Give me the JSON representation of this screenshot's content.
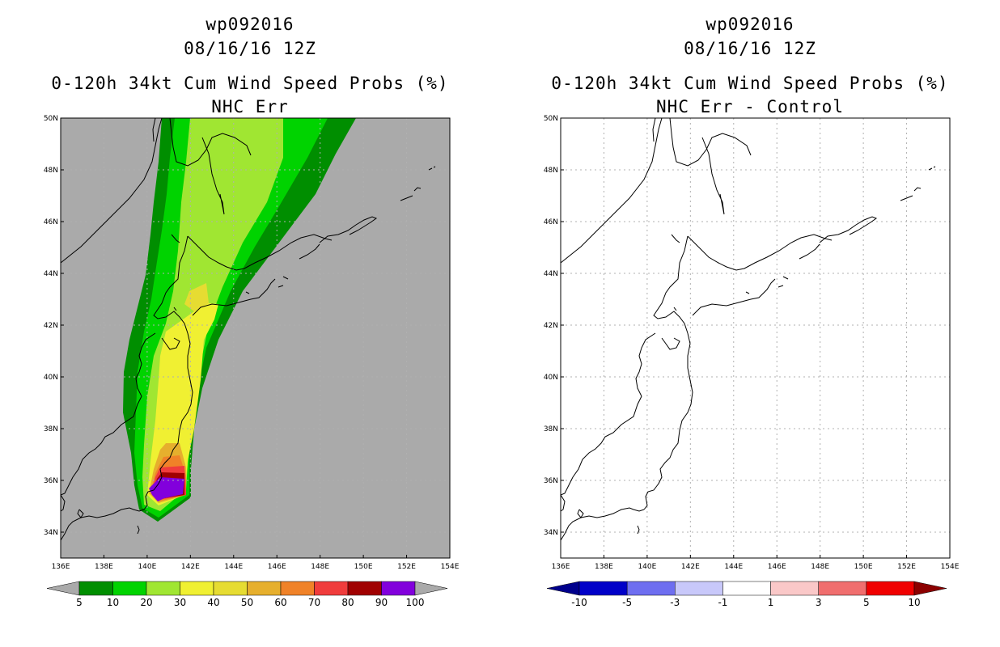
{
  "colors": {
    "land_gray": "#aaaaaa",
    "coast": "#000000",
    "grid": "#b0b0b0"
  },
  "left_panel": {
    "title_line1": "wp092016",
    "title_line2": "08/16/16 12Z",
    "title_line3": "0-120h 34kt Cum Wind Speed Probs (%)",
    "title_line4": "NHC Err",
    "colorbar": {
      "colors": [
        "#008e00",
        "#00d300",
        "#a0e632",
        "#f0f032",
        "#e6dc32",
        "#e6af2d",
        "#f08228",
        "#f03c3c",
        "#a00000",
        "#8200dc"
      ],
      "under_color": "#aaaaaa",
      "over_color": "#aaaaaa",
      "labels": [
        "5",
        "10",
        "20",
        "30",
        "40",
        "50",
        "60",
        "70",
        "80",
        "90",
        "100"
      ]
    }
  },
  "right_panel": {
    "title_line1": "wp092016",
    "title_line2": "08/16/16 12Z",
    "title_line3": "0-120h 34kt Cum Wind Speed Probs (%)",
    "title_line4": "NHC Err - Control",
    "colorbar": {
      "colors": [
        "#0000c8",
        "#6e6ef0",
        "#c8c8fa",
        "#ffffff",
        "#fac8c8",
        "#f06e6e",
        "#f00000"
      ],
      "under_color": "#00008c",
      "over_color": "#8c0000",
      "labels": [
        "-10",
        "-5",
        "-3",
        "-1",
        "1",
        "3",
        "5",
        "10"
      ]
    }
  },
  "map": {
    "lon_labels": [
      "136E",
      "138E",
      "140E",
      "142E",
      "144E",
      "146E",
      "148E",
      "150E",
      "152E",
      "154E"
    ],
    "lat_labels": [
      "34N",
      "36N",
      "38N",
      "40N",
      "42N",
      "44N",
      "46N",
      "48N",
      "50N"
    ]
  }
}
